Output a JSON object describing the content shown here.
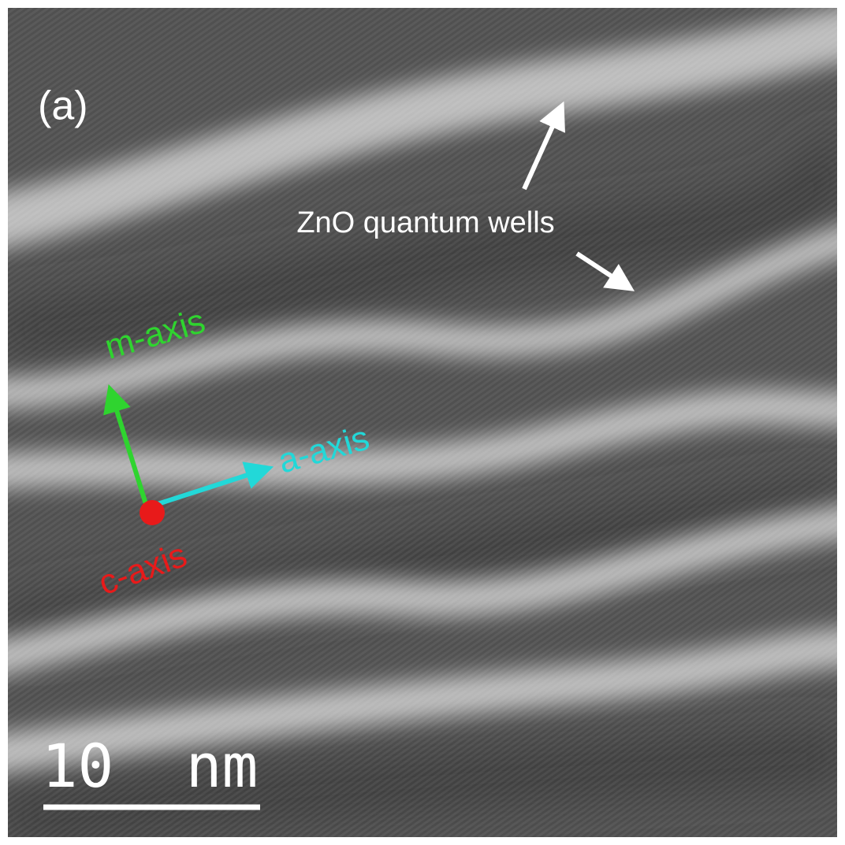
{
  "panel_label": "(a)",
  "annotation": "ZnO quantum wells",
  "axes": {
    "m_axis": "m-axis",
    "a_axis": "a-axis",
    "c_axis": "c-axis"
  },
  "scale_bar": {
    "label": "10  nm"
  }
}
